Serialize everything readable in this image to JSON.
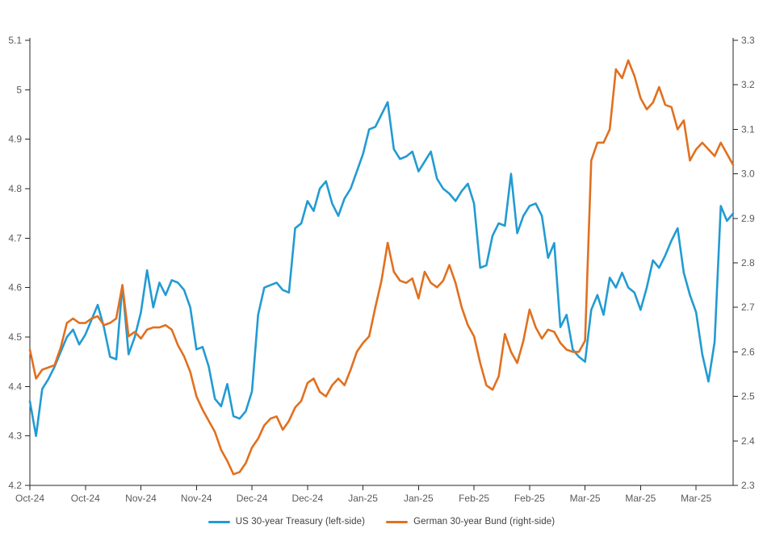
{
  "legend": {
    "items": [
      {
        "label": "US 30-year Treasury (left-side)",
        "color": "#229BD2"
      },
      {
        "label": "German 30-year Bund (right-side)",
        "color": "#E1701F"
      }
    ]
  },
  "chart_data": {
    "type": "line",
    "title": "",
    "grid": false,
    "legend_position": "bottom",
    "axis_line_color": "#262626",
    "tick_label_color": "#595959",
    "x_tick_labels": [
      "Oct-24",
      "Oct-24",
      "Nov-24",
      "Nov-24",
      "Dec-24",
      "Dec-24",
      "Jan-25",
      "Jan-25",
      "Feb-25",
      "Feb-25",
      "Mar-25",
      "Mar-25",
      "Mar-25"
    ],
    "left_axis": {
      "min": 4.2,
      "max": 5.1,
      "tick_step": 0.1,
      "tick_labels": [
        "5.1",
        "5",
        "4.9",
        "4.8",
        "4.7",
        "4.6",
        "4.5",
        "4.4",
        "4.3",
        "4.2"
      ]
    },
    "right_axis": {
      "min": 2.3,
      "max": 3.3,
      "tick_step": 0.1,
      "tick_labels": [
        "3.3",
        "3.2",
        "3.1",
        "3.0",
        "2.9",
        "2.8",
        "2.7",
        "2.6",
        "2.5",
        "2.4",
        "2.3"
      ]
    },
    "series": [
      {
        "name": "US 30-year Treasury (left-side)",
        "axis": "left",
        "color": "#229BD2",
        "values": [
          4.37,
          4.3,
          4.395,
          4.415,
          4.44,
          4.47,
          4.5,
          4.515,
          4.485,
          4.505,
          4.535,
          4.565,
          4.52,
          4.46,
          4.455,
          4.605,
          4.465,
          4.5,
          4.55,
          4.635,
          4.56,
          4.61,
          4.585,
          4.615,
          4.61,
          4.595,
          4.56,
          4.475,
          4.48,
          4.44,
          4.375,
          4.36,
          4.405,
          4.34,
          4.335,
          4.35,
          4.39,
          4.545,
          4.6,
          4.605,
          4.61,
          4.595,
          4.59,
          4.72,
          4.73,
          4.775,
          4.755,
          4.8,
          4.815,
          4.77,
          4.745,
          4.78,
          4.8,
          4.835,
          4.87,
          4.92,
          4.925,
          4.95,
          4.975,
          4.88,
          4.86,
          4.865,
          4.875,
          4.835,
          4.855,
          4.875,
          4.82,
          4.8,
          4.79,
          4.775,
          4.795,
          4.81,
          4.77,
          4.64,
          4.645,
          4.705,
          4.73,
          4.725,
          4.83,
          4.71,
          4.745,
          4.765,
          4.77,
          4.745,
          4.66,
          4.69,
          4.52,
          4.545,
          4.475,
          4.46,
          4.45,
          4.555,
          4.585,
          4.545,
          4.62,
          4.6,
          4.63,
          4.6,
          4.59,
          4.555,
          4.6,
          4.655,
          4.64,
          4.665,
          4.695,
          4.72,
          4.63,
          4.585,
          4.55,
          4.465,
          4.41,
          4.49,
          4.765,
          4.735,
          4.75
        ]
      },
      {
        "name": "German 30-year Bund (right-side)",
        "axis": "right",
        "color": "#E1701F",
        "values": [
          2.605,
          2.54,
          2.56,
          2.565,
          2.57,
          2.61,
          2.665,
          2.675,
          2.665,
          2.665,
          2.675,
          2.68,
          2.66,
          2.665,
          2.675,
          2.75,
          2.635,
          2.645,
          2.63,
          2.65,
          2.655,
          2.655,
          2.66,
          2.65,
          2.615,
          2.59,
          2.555,
          2.5,
          2.47,
          2.445,
          2.42,
          2.38,
          2.355,
          2.325,
          2.33,
          2.35,
          2.385,
          2.405,
          2.435,
          2.45,
          2.455,
          2.425,
          2.445,
          2.475,
          2.49,
          2.53,
          2.54,
          2.51,
          2.5,
          2.525,
          2.54,
          2.525,
          2.56,
          2.6,
          2.62,
          2.635,
          2.7,
          2.76,
          2.845,
          2.78,
          2.76,
          2.755,
          2.765,
          2.72,
          2.78,
          2.755,
          2.745,
          2.76,
          2.795,
          2.755,
          2.7,
          2.66,
          2.635,
          2.575,
          2.525,
          2.515,
          2.545,
          2.64,
          2.6,
          2.575,
          2.625,
          2.695,
          2.655,
          2.63,
          2.65,
          2.645,
          2.62,
          2.605,
          2.6,
          2.6,
          2.625,
          3.03,
          3.07,
          3.07,
          3.1,
          3.235,
          3.215,
          3.255,
          3.22,
          3.17,
          3.145,
          3.16,
          3.195,
          3.155,
          3.15,
          3.1,
          3.12,
          3.03,
          3.055,
          3.07,
          3.055,
          3.04,
          3.07,
          3.045,
          3.02
        ]
      }
    ]
  }
}
